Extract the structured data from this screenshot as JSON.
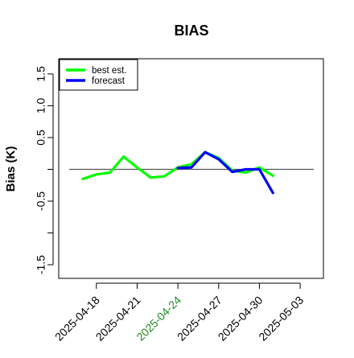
{
  "chart_data": {
    "type": "line",
    "title": "BIAS",
    "xlabel": "",
    "ylabel": "Bias (K)",
    "xlim": [
      "2025-04-16",
      "2025-05-04"
    ],
    "ylim": [
      -1.6,
      1.6
    ],
    "yticks": [
      -1.5,
      -1.0,
      -0.5,
      0.0,
      0.5,
      1.0,
      1.5
    ],
    "ytick_labels": [
      "-1.5",
      "",
      "-0.5",
      "",
      "0.5",
      "1.0",
      "1.5"
    ],
    "xticks": [
      "2025-04-18",
      "2025-04-21",
      "2025-04-24",
      "2025-04-27",
      "2025-04-30",
      "2025-05-03"
    ],
    "xtick_label_colors": [
      "#000000",
      "#000000",
      "#228B22",
      "#000000",
      "#000000",
      "#000000"
    ],
    "reference_line": 0,
    "grid": false,
    "legend_position": "top-left",
    "series": [
      {
        "name": "best est.",
        "color": "#00ff00",
        "x": [
          "2025-04-17",
          "2025-04-18",
          "2025-04-19",
          "2025-04-20",
          "2025-04-21",
          "2025-04-22",
          "2025-04-23",
          "2025-04-24",
          "2025-04-25",
          "2025-04-26",
          "2025-04-27",
          "2025-04-28",
          "2025-04-29",
          "2025-04-30",
          "2025-05-01"
        ],
        "values": [
          -0.15,
          -0.08,
          -0.05,
          0.2,
          0.03,
          -0.13,
          -0.11,
          0.03,
          0.08,
          0.27,
          0.18,
          -0.02,
          -0.05,
          0.03,
          -0.1
        ]
      },
      {
        "name": "forecast",
        "color": "#0000ff",
        "x": [
          "2025-04-24",
          "2025-04-25",
          "2025-04-26",
          "2025-04-27",
          "2025-04-28",
          "2025-04-29",
          "2025-04-30",
          "2025-05-01"
        ],
        "values": [
          0.02,
          0.03,
          0.27,
          0.16,
          -0.04,
          0.0,
          0.0,
          -0.37
        ]
      }
    ]
  }
}
